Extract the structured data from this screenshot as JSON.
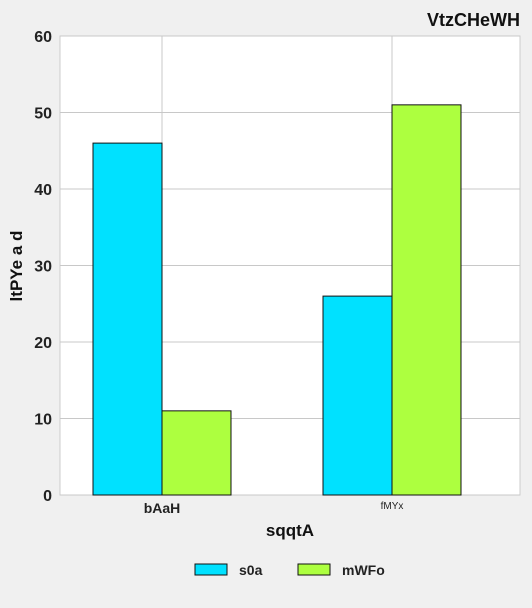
{
  "chart_data": {
    "type": "bar",
    "title": "VtzCHeWH",
    "xlabel": "sqqtA",
    "ylabel": "ltPYe a d",
    "categories": [
      "bAaH",
      "fMYx"
    ],
    "series": [
      {
        "name": "s0a",
        "values": [
          46,
          26
        ],
        "color": "#00e1ff"
      },
      {
        "name": "mWFo",
        "values": [
          11,
          51
        ],
        "color": "#adff3f"
      }
    ],
    "ylim": [
      0,
      60
    ],
    "yticks": [
      0,
      10,
      20,
      30,
      40,
      50,
      60
    ],
    "grid": true,
    "legend": "bottom-center"
  }
}
